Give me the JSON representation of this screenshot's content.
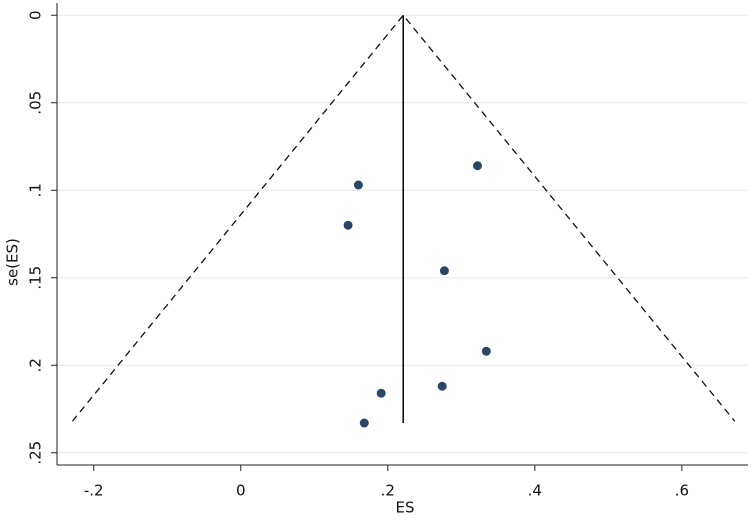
{
  "chart_data": {
    "type": "scatter",
    "x_label": "ES",
    "y_label": "se(ES)",
    "x": [
      0.16,
      0.322,
      0.146,
      0.277,
      0.334,
      0.274,
      0.191,
      0.168
    ],
    "values": [
      0.097,
      0.086,
      0.12,
      0.146,
      0.192,
      0.212,
      0.216,
      0.233
    ],
    "color": "#2b4566",
    "xlim": [
      -0.25,
      0.69
    ],
    "ylim": [
      0.257,
      -0.007
    ],
    "xticks": [
      {
        "value": -0.2,
        "label": "-.2"
      },
      0,
      {
        "value": 0.2,
        "label": ".2"
      },
      {
        "value": 0.4,
        "label": ".4"
      },
      {
        "value": 0.6,
        "label": ".6"
      }
    ],
    "yticks": [
      0,
      {
        "value": 0.05,
        "label": ".05"
      },
      {
        "value": 0.1,
        "label": ".1"
      },
      {
        "value": 0.15,
        "label": ".15"
      },
      {
        "value": 0.2,
        "label": ".2"
      },
      {
        "value": 0.25,
        "label": ".25"
      }
    ],
    "grid": true,
    "reference_line": {
      "x": [
        0.221,
        0.221
      ],
      "y": [
        0,
        0.233
      ]
    },
    "funnel": {
      "x": [
        -0.229,
        0.221,
        0.672
      ],
      "y": [
        0.232,
        0,
        0.232
      ]
    }
  }
}
